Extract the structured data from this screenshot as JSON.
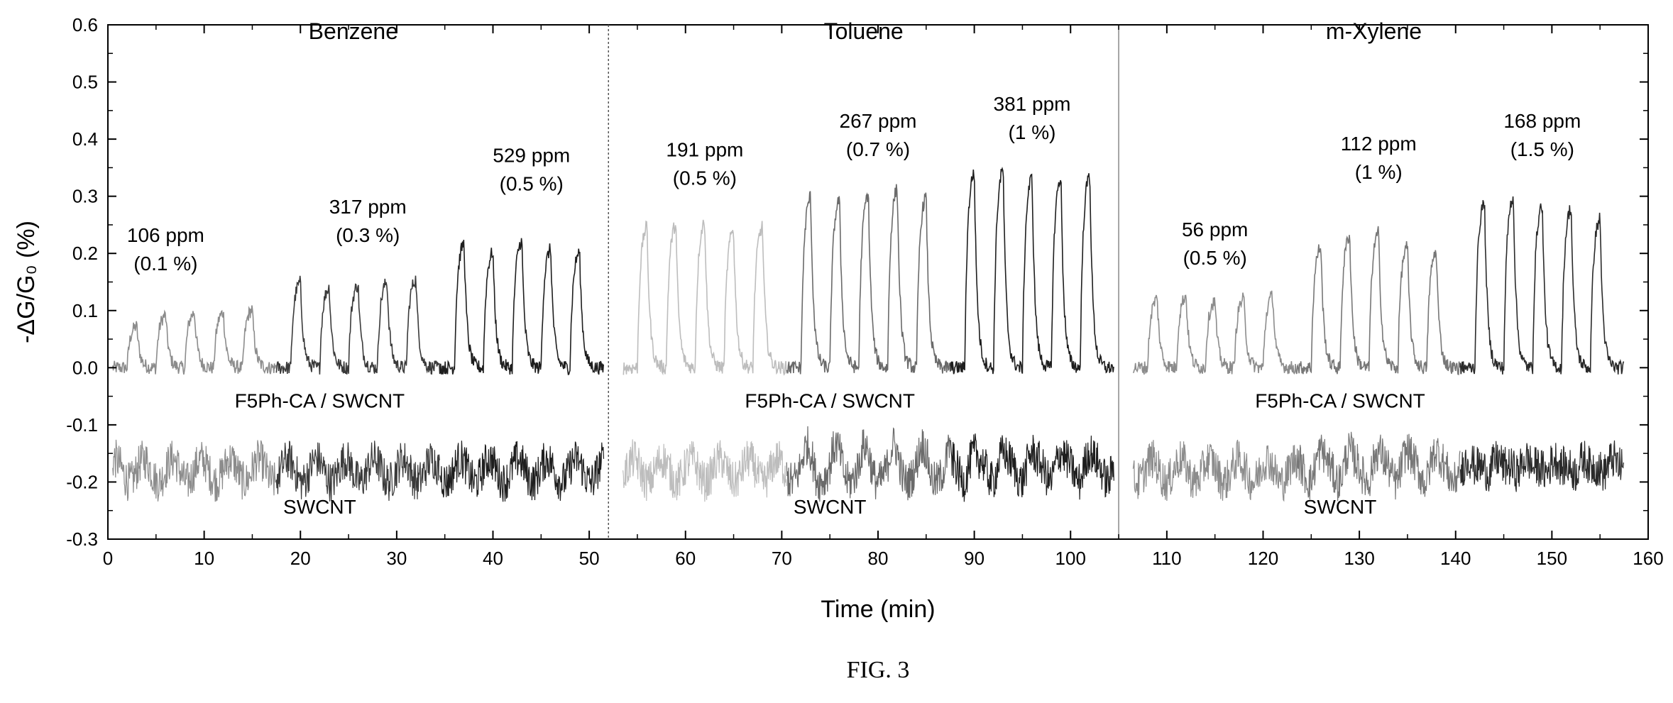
{
  "figure_label": "FIG. 3",
  "chart_data": {
    "type": "line",
    "title": "",
    "xlabel": "Time (min)",
    "ylabel": "-ΔG/G₀ (%)",
    "xlim": [
      0,
      160
    ],
    "ylim": [
      -0.3,
      0.6
    ],
    "xticks": [
      0,
      10,
      20,
      30,
      40,
      50,
      60,
      70,
      80,
      90,
      100,
      110,
      120,
      130,
      140,
      150,
      160
    ],
    "yticks": [
      -0.3,
      -0.2,
      -0.1,
      0.0,
      0.1,
      0.2,
      0.3,
      0.4,
      0.5,
      0.6
    ],
    "xtick_labels": [
      "0",
      "10",
      "20",
      "30",
      "40",
      "50",
      "60",
      "70",
      "80",
      "90",
      "100",
      "110",
      "120",
      "130",
      "140",
      "150",
      "160"
    ],
    "ytick_labels": [
      "-0.3",
      "-0.2",
      "-0.1",
      "0.0",
      "0.1",
      "0.2",
      "0.3",
      "0.4",
      "0.5",
      "0.6"
    ],
    "grid": false,
    "panel_dividers_x": [
      52,
      105
    ],
    "panels": [
      {
        "name": "Benzene",
        "x_range": [
          0,
          51
        ],
        "sensor_label": "F5Ph-CA / SWCNT",
        "control_label": "SWCNT",
        "groups": [
          {
            "conc": "106 ppm",
            "pct": "(0.1 %)",
            "color": "#8c8c8c",
            "peaks_x": [
              3,
              6,
              9,
              12,
              15
            ],
            "peak_y": [
              0.075,
              0.095,
              0.1,
              0.1,
              0.105
            ],
            "annot_at": [
              6,
              0.22
            ]
          },
          {
            "conc": "317 ppm",
            "pct": "(0.3 %)",
            "color": "#3a3a3a",
            "peaks_x": [
              20,
              23,
              26,
              29,
              32
            ],
            "peak_y": [
              0.155,
              0.145,
              0.15,
              0.155,
              0.16
            ],
            "annot_at": [
              27,
              0.27
            ]
          },
          {
            "conc": "529 ppm",
            "pct": "(0.5 %)",
            "color": "#1e1e1e",
            "peaks_x": [
              37,
              40,
              43,
              46,
              49
            ],
            "peak_y": [
              0.225,
              0.21,
              0.23,
              0.215,
              0.21
            ],
            "annot_at": [
              44,
              0.36
            ]
          }
        ]
      },
      {
        "name": "Toluene",
        "x_range": [
          53,
          104
        ],
        "sensor_label": "F5Ph-CA / SWCNT",
        "control_label": "SWCNT",
        "groups": [
          {
            "conc": "191 ppm",
            "pct": "(0.5 %)",
            "color": "#bdbdbd",
            "peaks_x": [
              56,
              59,
              62,
              65,
              68
            ],
            "peak_y": [
              0.255,
              0.26,
              0.265,
              0.25,
              0.255
            ],
            "annot_at": [
              62,
              0.37
            ]
          },
          {
            "conc": "267 ppm",
            "pct": "(0.7 %)",
            "color": "#6a6a6a",
            "peaks_x": [
              73,
              76,
              79,
              82,
              85
            ],
            "peak_y": [
              0.31,
              0.305,
              0.315,
              0.325,
              0.31
            ],
            "annot_at": [
              80,
              0.42
            ]
          },
          {
            "conc": "381 ppm",
            "pct": "(1 %)",
            "color": "#1e1e1e",
            "peaks_x": [
              90,
              93,
              96,
              99,
              102
            ],
            "peak_y": [
              0.355,
              0.36,
              0.345,
              0.345,
              0.35
            ],
            "annot_at": [
              96,
              0.45
            ]
          }
        ]
      },
      {
        "name": "m-Xylene",
        "x_range": [
          106,
          157
        ],
        "sensor_label": "F5Ph-CA / SWCNT",
        "control_label": "SWCNT",
        "groups": [
          {
            "conc": "56 ppm",
            "pct": "(0.5 %)",
            "color": "#8c8c8c",
            "peaks_x": [
              109,
              112,
              115,
              118,
              121
            ],
            "peak_y": [
              0.125,
              0.13,
              0.12,
              0.125,
              0.13
            ],
            "annot_at": [
              115,
              0.23
            ]
          },
          {
            "conc": "112 ppm",
            "pct": "(1 %)",
            "color": "#777777",
            "peaks_x": [
              126,
              129,
              132,
              135,
              138
            ],
            "peak_y": [
              0.22,
              0.24,
              0.245,
              0.22,
              0.21
            ],
            "annot_at": [
              132,
              0.38
            ]
          },
          {
            "conc": "168 ppm",
            "pct": "(1.5 %)",
            "color": "#2a2a2a",
            "peaks_x": [
              143,
              146,
              149,
              152,
              155
            ],
            "peak_y": [
              0.3,
              0.31,
              0.295,
              0.29,
              0.27
            ],
            "annot_at": [
              149,
              0.42
            ]
          }
        ]
      }
    ]
  }
}
